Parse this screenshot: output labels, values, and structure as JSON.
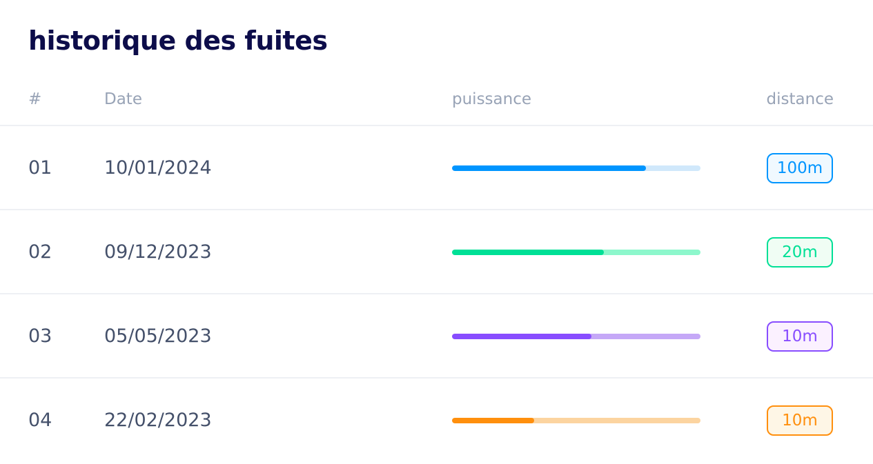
{
  "title": "historique des fuites",
  "columns": {
    "num": "#",
    "date": "Date",
    "power": "puissance",
    "distance": "distance"
  },
  "rows": [
    {
      "num": "01",
      "date": "10/01/2024",
      "power_fraction": 0.78,
      "distance": "100m",
      "color": "#0095ff",
      "track_color": "#d0e8fb",
      "badge_bg": "#f0f9ff"
    },
    {
      "num": "02",
      "date": "09/12/2023",
      "power_fraction": 0.61,
      "distance": "20m",
      "color": "#00e096",
      "track_color": "#8df7cc",
      "badge_bg": "#f0fdf4"
    },
    {
      "num": "03",
      "date": "05/05/2023",
      "power_fraction": 0.56,
      "distance": "10m",
      "color": "#884dff",
      "track_color": "#c5a8f7",
      "badge_bg": "#fbf1ff"
    },
    {
      "num": "04",
      "date": "22/02/2023",
      "power_fraction": 0.33,
      "distance": "10m",
      "color": "#ff8f0d",
      "track_color": "#fcd4a0",
      "badge_bg": "#fef6e6"
    }
  ]
}
